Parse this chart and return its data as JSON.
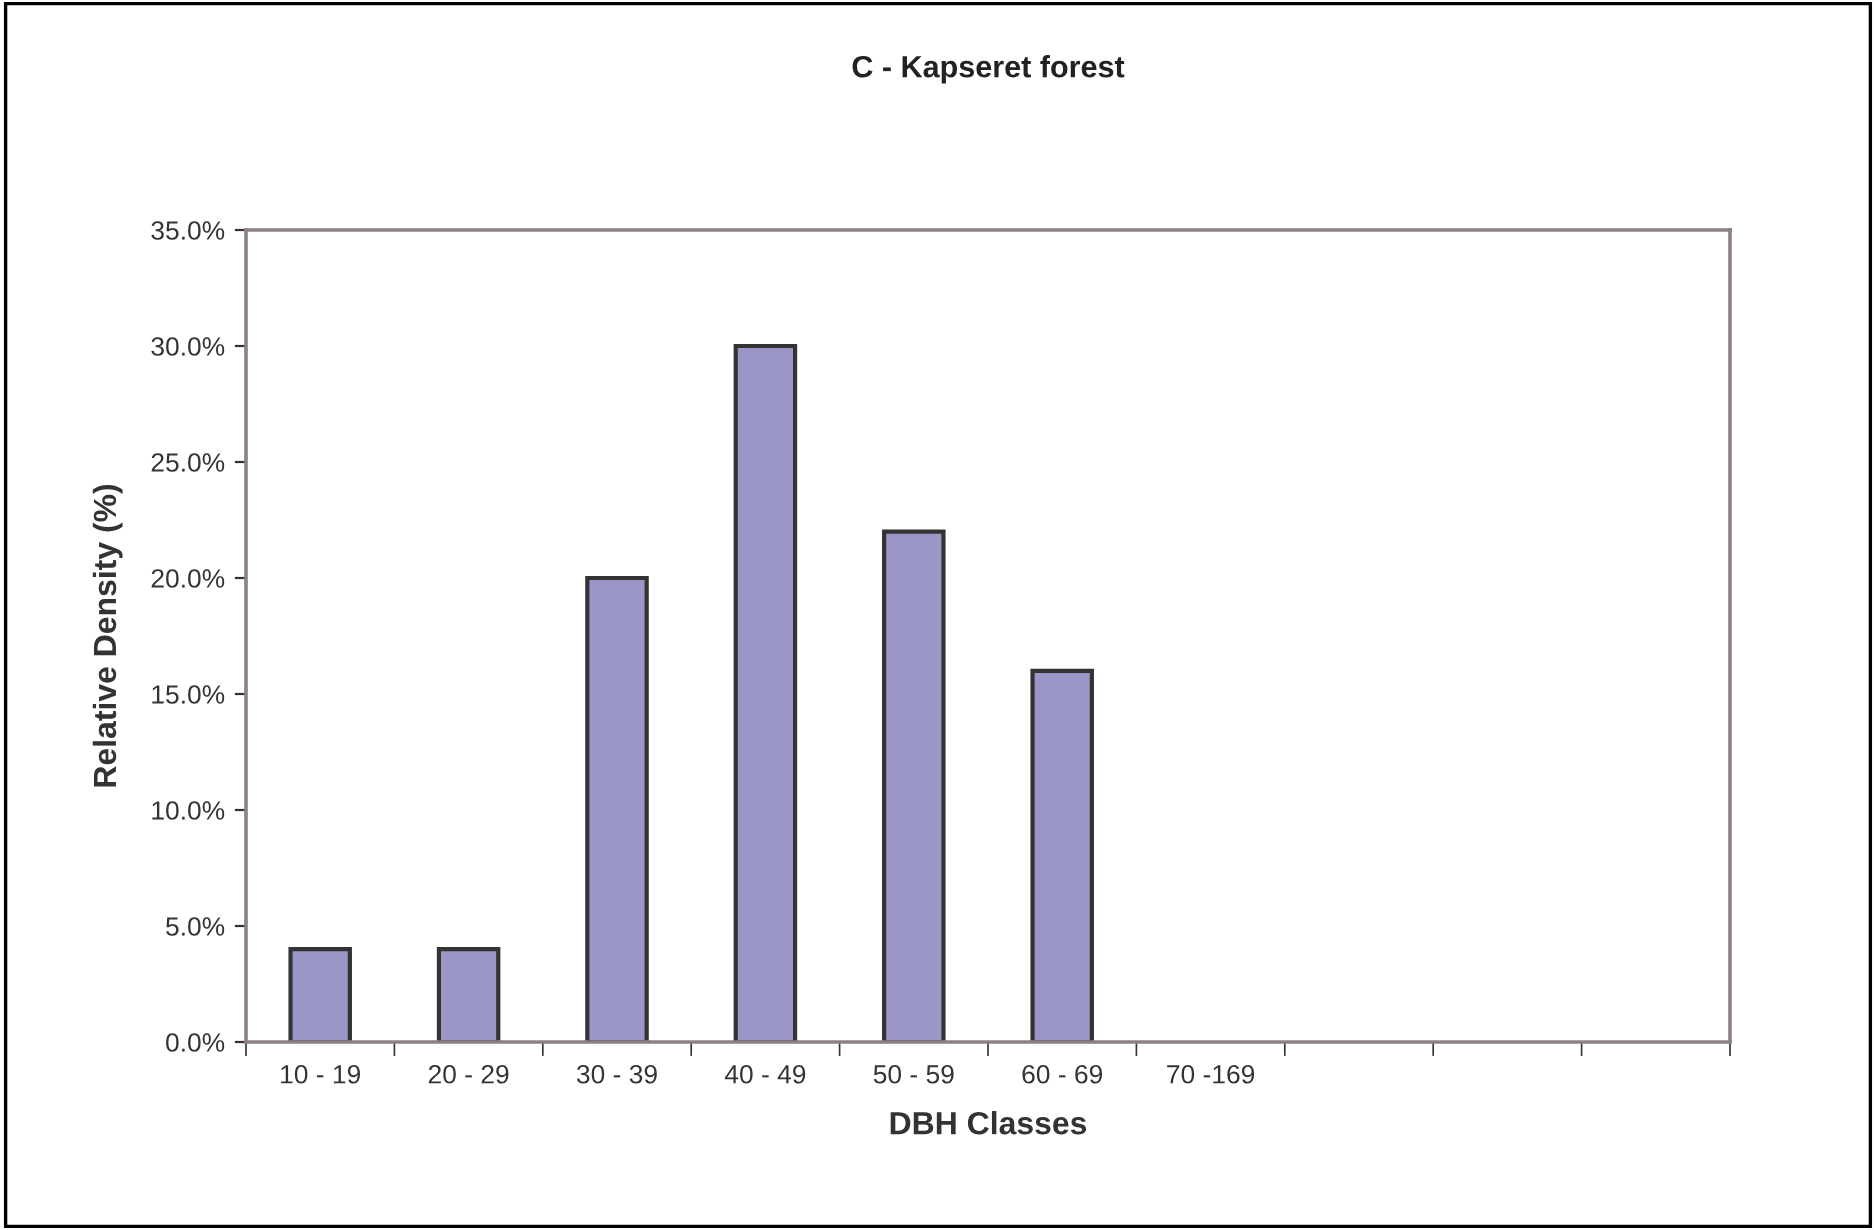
{
  "chart_data": {
    "type": "bar",
    "title": "C - Kapseret forest",
    "xlabel": "DBH Classes",
    "ylabel": "Relative Density (%)",
    "categories": [
      "10 - 19",
      "20 - 29",
      "30 - 39",
      "40 - 49",
      "50 - 59",
      "60 - 69",
      "70 -169",
      null,
      null,
      null
    ],
    "values": [
      4.0,
      4.0,
      20.0,
      30.0,
      22.0,
      16.0,
      null,
      null,
      null,
      null
    ],
    "color": "#9b96c8",
    "ylim": [
      0,
      35
    ],
    "yticks": [
      {
        "value": 0,
        "label": "0.0%"
      },
      {
        "value": 5,
        "label": "5.0%"
      },
      {
        "value": 10,
        "label": "10.0%"
      },
      {
        "value": 15,
        "label": "15.0%"
      },
      {
        "value": 20,
        "label": "20.0%"
      },
      {
        "value": 25,
        "label": "25.0%"
      },
      {
        "value": 30,
        "label": "30.0%"
      },
      {
        "value": 35,
        "label": "35.0%"
      }
    ],
    "grid": false,
    "legend": false
  }
}
